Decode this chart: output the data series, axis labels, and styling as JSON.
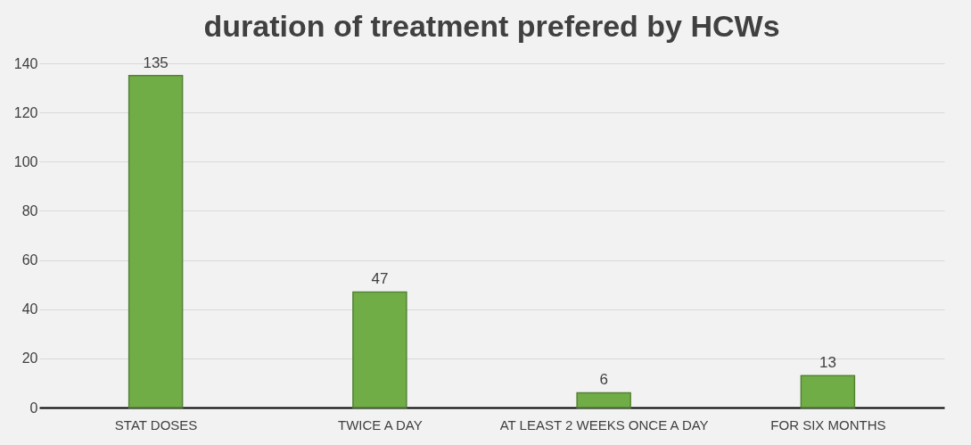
{
  "chart_data": {
    "type": "bar",
    "title": "duration of treatment prefered by HCWs",
    "categories": [
      "STAT DOSES",
      "TWICE A DAY",
      "AT LEAST 2 WEEKS ONCE A DAY",
      "FOR SIX MONTHS"
    ],
    "values": [
      135,
      47,
      6,
      13
    ],
    "color": "#70ad47",
    "ylim": [
      0,
      140
    ],
    "yticks": [
      0,
      20,
      40,
      60,
      80,
      100,
      120,
      140
    ],
    "grid": "y",
    "data_labels": true
  }
}
